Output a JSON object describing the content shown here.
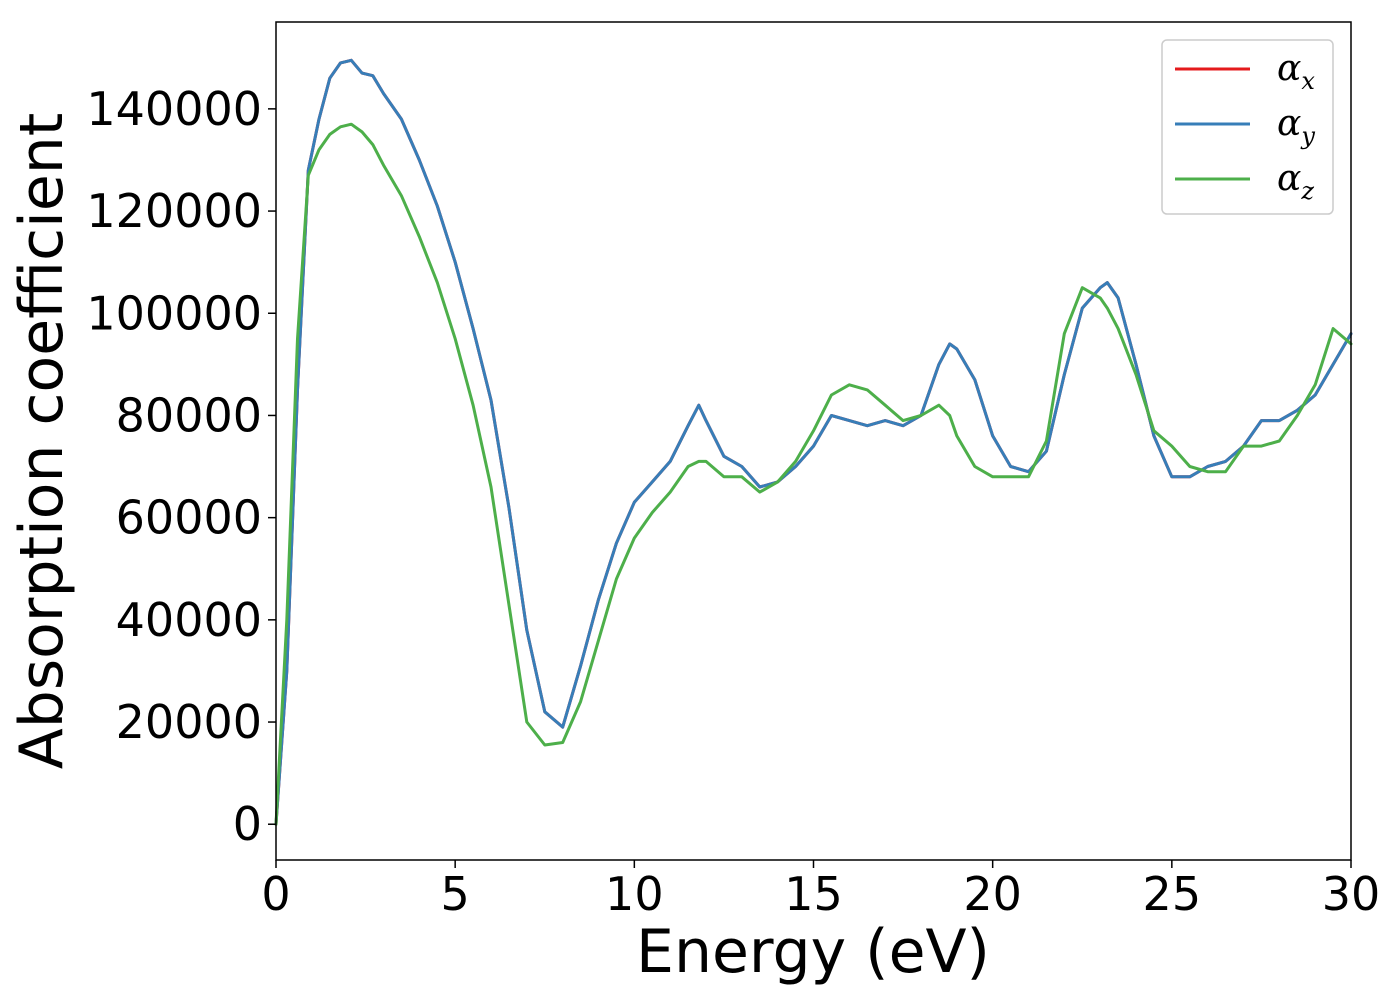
{
  "chart_data": {
    "type": "line",
    "xlabel": "Energy (eV)",
    "ylabel": "Absorption coefficient",
    "xlim": [
      0,
      30
    ],
    "ylim": [
      -7000,
      157000
    ],
    "xticks": [
      0,
      5,
      10,
      15,
      20,
      25,
      30
    ],
    "xtick_labels": [
      "0",
      "5",
      "10",
      "15",
      "20",
      "25",
      "30"
    ],
    "yticks": [
      0,
      20000,
      40000,
      60000,
      80000,
      100000,
      120000,
      140000
    ],
    "ytick_labels": [
      "0",
      "20000",
      "40000",
      "60000",
      "80000",
      "100000",
      "120000",
      "140000"
    ],
    "grid": false,
    "legend_position": "top-right",
    "x": [
      0,
      0.3,
      0.6,
      0.9,
      1.2,
      1.5,
      1.8,
      2.1,
      2.4,
      2.7,
      3.0,
      3.5,
      4.0,
      4.5,
      5.0,
      5.5,
      6.0,
      6.5,
      7.0,
      7.5,
      8.0,
      8.5,
      9.0,
      9.5,
      10.0,
      10.5,
      11.0,
      11.5,
      11.8,
      12.0,
      12.5,
      13.0,
      13.5,
      14.0,
      14.5,
      15.0,
      15.5,
      16.0,
      16.5,
      17.0,
      17.5,
      18.0,
      18.5,
      18.8,
      19.0,
      19.5,
      20.0,
      20.5,
      21.0,
      21.5,
      22.0,
      22.5,
      23.0,
      23.2,
      23.5,
      24.0,
      24.5,
      25.0,
      25.5,
      26.0,
      26.5,
      27.0,
      27.5,
      28.0,
      28.5,
      29.0,
      29.5,
      30.0
    ],
    "series": [
      {
        "name": "α",
        "subscript": "x",
        "color": "#e41a1c",
        "values": [
          0,
          30000,
          85000,
          128000,
          138000,
          146000,
          149000,
          149500,
          147000,
          146500,
          143000,
          138000,
          130000,
          121000,
          110000,
          97000,
          83000,
          62000,
          38000,
          22000,
          19000,
          31000,
          44000,
          55000,
          63000,
          67000,
          71000,
          78000,
          82000,
          79000,
          72000,
          70000,
          66000,
          67000,
          70000,
          74000,
          80000,
          79000,
          78000,
          79000,
          78000,
          80000,
          90000,
          94000,
          93000,
          87000,
          76000,
          70000,
          69000,
          73000,
          88000,
          101000,
          105000,
          106000,
          103000,
          90000,
          76000,
          68000,
          68000,
          70000,
          71000,
          74000,
          79000,
          79000,
          81000,
          84000,
          90000,
          96000
        ]
      },
      {
        "name": "α",
        "subscript": "y",
        "color": "#377eb8",
        "values": [
          0,
          30000,
          85000,
          128000,
          138000,
          146000,
          149000,
          149500,
          147000,
          146500,
          143000,
          138000,
          130000,
          121000,
          110000,
          97000,
          83000,
          62000,
          38000,
          22000,
          19000,
          31000,
          44000,
          55000,
          63000,
          67000,
          71000,
          78000,
          82000,
          79000,
          72000,
          70000,
          66000,
          67000,
          70000,
          74000,
          80000,
          79000,
          78000,
          79000,
          78000,
          80000,
          90000,
          94000,
          93000,
          87000,
          76000,
          70000,
          69000,
          73000,
          88000,
          101000,
          105000,
          106000,
          103000,
          90000,
          76000,
          68000,
          68000,
          70000,
          71000,
          74000,
          79000,
          79000,
          81000,
          84000,
          90000,
          96000
        ]
      },
      {
        "name": "α",
        "subscript": "z",
        "color": "#4daf4a",
        "values": [
          0,
          40000,
          95000,
          127000,
          132000,
          135000,
          136500,
          137000,
          135500,
          133000,
          129000,
          123000,
          115000,
          106000,
          95000,
          82000,
          66000,
          43000,
          20000,
          15500,
          16000,
          24000,
          36000,
          48000,
          56000,
          61000,
          65000,
          70000,
          71000,
          71000,
          68000,
          68000,
          65000,
          67000,
          71000,
          77000,
          84000,
          86000,
          85000,
          82000,
          79000,
          80000,
          82000,
          80000,
          76000,
          70000,
          68000,
          68000,
          68000,
          75000,
          96000,
          105000,
          103000,
          101000,
          97000,
          88000,
          77000,
          74000,
          70000,
          69000,
          69000,
          74000,
          74000,
          75000,
          80000,
          86000,
          97000,
          94000
        ]
      }
    ]
  }
}
